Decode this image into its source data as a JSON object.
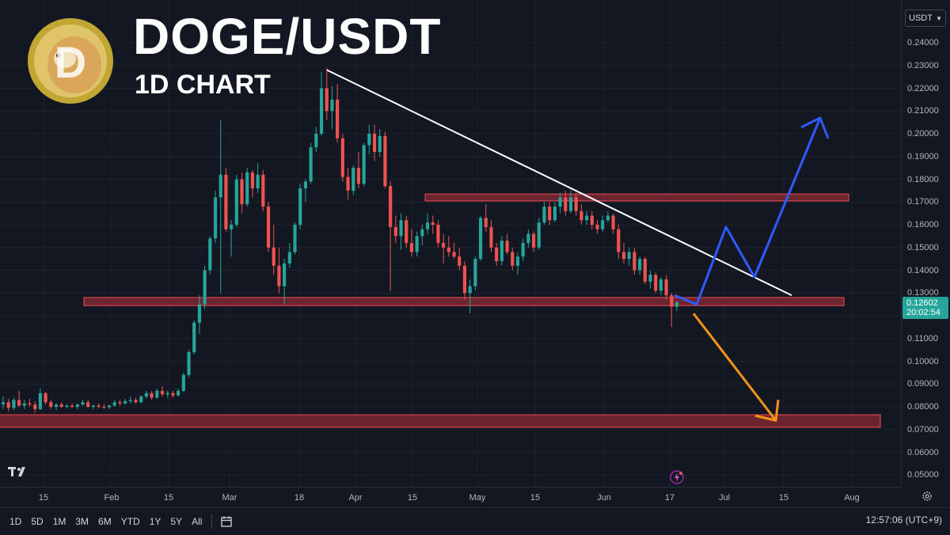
{
  "header": {
    "title": "DOGE/USDT",
    "subtitle": "1D CHART"
  },
  "logo": {
    "icon": "dogecoin-logo",
    "letter": "D"
  },
  "price_axis": {
    "currency": "USDT",
    "ticks": [
      "0.24000",
      "0.23000",
      "0.22000",
      "0.21000",
      "0.20000",
      "0.19000",
      "0.18000",
      "0.17000",
      "0.16000",
      "0.15000",
      "0.14000",
      "0.13000",
      "0.12000",
      "0.11000",
      "0.10000",
      "0.09000",
      "0.08000",
      "0.07000",
      "0.06000",
      "0.05000"
    ],
    "current_price": "0.12602",
    "countdown": "20:02:54"
  },
  "time_axis": {
    "ticks": [
      "15",
      "Feb",
      "15",
      "Mar",
      "18",
      "Apr",
      "15",
      "May",
      "15",
      "Jun",
      "17",
      "Jul",
      "15",
      "Aug"
    ]
  },
  "bottom_bar": {
    "ranges": [
      "1D",
      "5D",
      "1M",
      "3M",
      "6M",
      "YTD",
      "1Y",
      "5Y",
      "All"
    ],
    "clock": "12:57:06 (UTC+9)"
  },
  "colors": {
    "up": "#26a69a",
    "down": "#ef5350",
    "zone_fill": "#8b2a33",
    "zone_stroke": "#d9434f",
    "trendline": "#ffffff",
    "bull_path": "#2e5bff",
    "bear_path": "#f7931a",
    "background": "#131722"
  },
  "chart_data": {
    "type": "candlestick",
    "interval": "1D",
    "ylim": [
      0.045,
      0.245
    ],
    "x_labels": [
      "15",
      "Feb",
      "15",
      "Mar",
      "18",
      "Apr",
      "15",
      "May",
      "15",
      "Jun",
      "17",
      "Jul",
      "15",
      "Aug"
    ],
    "candles_ohlc": [
      [
        0.081,
        0.0845,
        0.079,
        0.082
      ],
      [
        0.082,
        0.0835,
        0.078,
        0.0795
      ],
      [
        0.0795,
        0.084,
        0.0785,
        0.083
      ],
      [
        0.083,
        0.087,
        0.08,
        0.0805
      ],
      [
        0.0805,
        0.083,
        0.079,
        0.0815
      ],
      [
        0.0815,
        0.0835,
        0.08,
        0.081
      ],
      [
        0.081,
        0.0825,
        0.0775,
        0.079
      ],
      [
        0.079,
        0.088,
        0.0785,
        0.086
      ],
      [
        0.086,
        0.0865,
        0.081,
        0.082
      ],
      [
        0.082,
        0.083,
        0.079,
        0.08
      ],
      [
        0.08,
        0.0815,
        0.0785,
        0.081
      ],
      [
        0.081,
        0.082,
        0.0795,
        0.08
      ],
      [
        0.08,
        0.0812,
        0.0792,
        0.0805
      ],
      [
        0.0805,
        0.0815,
        0.0795,
        0.08
      ],
      [
        0.08,
        0.0815,
        0.079,
        0.081
      ],
      [
        0.081,
        0.083,
        0.0805,
        0.082
      ],
      [
        0.082,
        0.083,
        0.0795,
        0.08
      ],
      [
        0.08,
        0.081,
        0.079,
        0.0805
      ],
      [
        0.0805,
        0.0815,
        0.0795,
        0.08
      ],
      [
        0.08,
        0.0812,
        0.079,
        0.0798
      ],
      [
        0.0798,
        0.081,
        0.079,
        0.0805
      ],
      [
        0.0805,
        0.083,
        0.08,
        0.082
      ],
      [
        0.082,
        0.083,
        0.0805,
        0.0815
      ],
      [
        0.0815,
        0.0835,
        0.081,
        0.0825
      ],
      [
        0.0825,
        0.0845,
        0.0815,
        0.083
      ],
      [
        0.083,
        0.084,
        0.0815,
        0.082
      ],
      [
        0.082,
        0.085,
        0.0815,
        0.0845
      ],
      [
        0.0845,
        0.087,
        0.0835,
        0.086
      ],
      [
        0.086,
        0.087,
        0.083,
        0.084
      ],
      [
        0.084,
        0.088,
        0.0835,
        0.087
      ],
      [
        0.087,
        0.089,
        0.0845,
        0.0855
      ],
      [
        0.0855,
        0.087,
        0.084,
        0.086
      ],
      [
        0.086,
        0.087,
        0.084,
        0.085
      ],
      [
        0.085,
        0.088,
        0.0845,
        0.087
      ],
      [
        0.087,
        0.095,
        0.0865,
        0.094
      ],
      [
        0.094,
        0.105,
        0.093,
        0.104
      ],
      [
        0.104,
        0.118,
        0.103,
        0.117
      ],
      [
        0.117,
        0.129,
        0.112,
        0.125
      ],
      [
        0.125,
        0.142,
        0.123,
        0.14
      ],
      [
        0.14,
        0.155,
        0.138,
        0.154
      ],
      [
        0.154,
        0.175,
        0.152,
        0.172
      ],
      [
        0.172,
        0.206,
        0.13,
        0.182
      ],
      [
        0.182,
        0.185,
        0.157,
        0.158
      ],
      [
        0.158,
        0.162,
        0.146,
        0.16
      ],
      [
        0.16,
        0.182,
        0.159,
        0.18
      ],
      [
        0.18,
        0.183,
        0.165,
        0.169
      ],
      [
        0.169,
        0.185,
        0.168,
        0.183
      ],
      [
        0.183,
        0.184,
        0.172,
        0.176
      ],
      [
        0.176,
        0.187,
        0.174,
        0.182
      ],
      [
        0.182,
        0.184,
        0.166,
        0.168
      ],
      [
        0.168,
        0.17,
        0.148,
        0.15
      ],
      [
        0.15,
        0.16,
        0.138,
        0.142
      ],
      [
        0.142,
        0.15,
        0.13,
        0.133
      ],
      [
        0.133,
        0.145,
        0.125,
        0.143
      ],
      [
        0.143,
        0.152,
        0.141,
        0.148
      ],
      [
        0.148,
        0.161,
        0.147,
        0.16
      ],
      [
        0.16,
        0.178,
        0.158,
        0.176
      ],
      [
        0.176,
        0.18,
        0.17,
        0.179
      ],
      [
        0.179,
        0.196,
        0.178,
        0.194
      ],
      [
        0.194,
        0.203,
        0.192,
        0.2
      ],
      [
        0.2,
        0.227,
        0.199,
        0.22
      ],
      [
        0.22,
        0.229,
        0.206,
        0.21
      ],
      [
        0.21,
        0.221,
        0.202,
        0.215
      ],
      [
        0.215,
        0.222,
        0.196,
        0.198
      ],
      [
        0.198,
        0.2,
        0.179,
        0.181
      ],
      [
        0.181,
        0.185,
        0.171,
        0.175
      ],
      [
        0.175,
        0.186,
        0.173,
        0.185
      ],
      [
        0.185,
        0.192,
        0.176,
        0.178
      ],
      [
        0.178,
        0.196,
        0.177,
        0.195
      ],
      [
        0.195,
        0.204,
        0.191,
        0.2
      ],
      [
        0.2,
        0.204,
        0.188,
        0.192
      ],
      [
        0.192,
        0.202,
        0.19,
        0.199
      ],
      [
        0.199,
        0.201,
        0.176,
        0.177
      ],
      [
        0.177,
        0.179,
        0.131,
        0.159
      ],
      [
        0.159,
        0.164,
        0.152,
        0.155
      ],
      [
        0.155,
        0.165,
        0.149,
        0.162
      ],
      [
        0.162,
        0.164,
        0.15,
        0.152
      ],
      [
        0.152,
        0.158,
        0.146,
        0.148
      ],
      [
        0.148,
        0.157,
        0.146,
        0.155
      ],
      [
        0.155,
        0.16,
        0.151,
        0.158
      ],
      [
        0.158,
        0.165,
        0.156,
        0.161
      ],
      [
        0.161,
        0.164,
        0.156,
        0.16
      ],
      [
        0.16,
        0.162,
        0.15,
        0.152
      ],
      [
        0.152,
        0.156,
        0.143,
        0.15
      ],
      [
        0.15,
        0.155,
        0.146,
        0.148
      ],
      [
        0.148,
        0.152,
        0.145,
        0.146
      ],
      [
        0.146,
        0.15,
        0.14,
        0.142
      ],
      [
        0.142,
        0.144,
        0.127,
        0.13
      ],
      [
        0.13,
        0.136,
        0.121,
        0.133
      ],
      [
        0.133,
        0.146,
        0.131,
        0.145
      ],
      [
        0.145,
        0.164,
        0.144,
        0.163
      ],
      [
        0.163,
        0.169,
        0.157,
        0.159
      ],
      [
        0.159,
        0.162,
        0.148,
        0.15
      ],
      [
        0.15,
        0.152,
        0.142,
        0.144
      ],
      [
        0.144,
        0.155,
        0.142,
        0.153
      ],
      [
        0.153,
        0.156,
        0.147,
        0.148
      ],
      [
        0.148,
        0.15,
        0.14,
        0.142
      ],
      [
        0.142,
        0.148,
        0.138,
        0.146
      ],
      [
        0.146,
        0.154,
        0.144,
        0.152
      ],
      [
        0.152,
        0.158,
        0.15,
        0.156
      ],
      [
        0.156,
        0.157,
        0.148,
        0.15
      ],
      [
        0.15,
        0.163,
        0.149,
        0.161
      ],
      [
        0.161,
        0.17,
        0.16,
        0.168
      ],
      [
        0.168,
        0.17,
        0.16,
        0.162
      ],
      [
        0.162,
        0.17,
        0.161,
        0.168
      ],
      [
        0.168,
        0.174,
        0.165,
        0.172
      ],
      [
        0.172,
        0.175,
        0.164,
        0.166
      ],
      [
        0.166,
        0.175,
        0.165,
        0.172
      ],
      [
        0.172,
        0.174,
        0.164,
        0.166
      ],
      [
        0.166,
        0.169,
        0.16,
        0.162
      ],
      [
        0.162,
        0.166,
        0.16,
        0.164
      ],
      [
        0.164,
        0.166,
        0.158,
        0.16
      ],
      [
        0.16,
        0.162,
        0.156,
        0.158
      ],
      [
        0.158,
        0.164,
        0.157,
        0.162
      ],
      [
        0.162,
        0.166,
        0.161,
        0.164
      ],
      [
        0.164,
        0.165,
        0.156,
        0.158
      ],
      [
        0.158,
        0.16,
        0.145,
        0.148
      ],
      [
        0.148,
        0.152,
        0.143,
        0.145
      ],
      [
        0.145,
        0.15,
        0.142,
        0.148
      ],
      [
        0.148,
        0.15,
        0.138,
        0.14
      ],
      [
        0.14,
        0.146,
        0.138,
        0.145
      ],
      [
        0.145,
        0.146,
        0.134,
        0.135
      ],
      [
        0.135,
        0.14,
        0.132,
        0.138
      ],
      [
        0.138,
        0.139,
        0.13,
        0.131
      ],
      [
        0.131,
        0.137,
        0.129,
        0.136
      ],
      [
        0.136,
        0.138,
        0.127,
        0.129
      ],
      [
        0.129,
        0.13,
        0.115,
        0.124
      ],
      [
        0.124,
        0.1265,
        0.122,
        0.126
      ]
    ],
    "annotations": {
      "resistance_zone": [
        0.1705,
        0.1735
      ],
      "support_zone": [
        0.1245,
        0.128
      ],
      "lower_support_zone": [
        0.071,
        0.0765
      ],
      "descending_trendline": [
        [
          0.228
        ],
        [
          0.129
        ]
      ],
      "bullish_path": [
        0.129,
        0.125,
        0.159,
        0.137,
        0.207
      ],
      "bearish_path": [
        0.121,
        0.074
      ]
    }
  }
}
